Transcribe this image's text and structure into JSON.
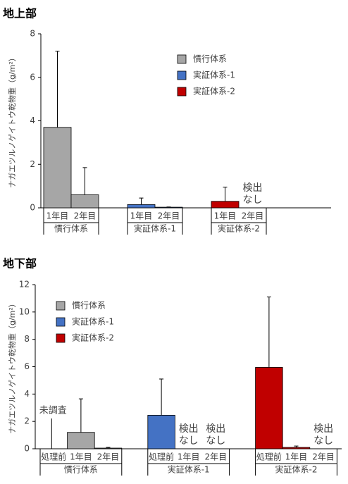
{
  "chart_data": [
    {
      "type": "bar",
      "title": "地上部",
      "y_label": "ナガエツルノゲイトウ乾物重（g/m²）",
      "ylim": [
        0,
        8
      ],
      "yticks": [
        0,
        2,
        4,
        6,
        8
      ],
      "legend_position": "upper right",
      "series": [
        {
          "name": "慣行体系",
          "color": "#a6a6a6",
          "categories": [
            "1年目",
            "2年目"
          ],
          "values": [
            3.7,
            0.6
          ],
          "errors": [
            3.5,
            1.25
          ],
          "notes": [
            null,
            null
          ]
        },
        {
          "name": "実証体系-1",
          "color": "#4472c4",
          "categories": [
            "1年目",
            "2年目"
          ],
          "values": [
            0.15,
            0.03
          ],
          "errors": [
            0.3,
            0.01
          ],
          "notes": [
            null,
            null
          ]
        },
        {
          "name": "実証体系-2",
          "color": "#c00000",
          "categories": [
            "1年目",
            "2年目"
          ],
          "values": [
            0.3,
            null
          ],
          "errors": [
            0.65,
            null
          ],
          "notes": [
            null,
            [
              "検出",
              "なし"
            ]
          ]
        }
      ]
    },
    {
      "type": "bar",
      "title": "地下部",
      "y_label": "ナガエツルノゲイトウ乾物重（g/m²）",
      "ylim": [
        0,
        12
      ],
      "yticks": [
        0,
        2,
        4,
        6,
        8,
        10,
        12
      ],
      "legend_position": "upper left",
      "series": [
        {
          "name": "慣行体系",
          "color": "#a6a6a6",
          "categories": [
            "処理前",
            "1年目",
            "2年目"
          ],
          "values": [
            null,
            1.2,
            0.05
          ],
          "errors": [
            null,
            2.45,
            0.05
          ],
          "notes": [
            [
              "未調査"
            ],
            null,
            null
          ]
        },
        {
          "name": "実証体系-1",
          "color": "#4472c4",
          "categories": [
            "処理前",
            "1年目",
            "2年目"
          ],
          "values": [
            2.45,
            null,
            null
          ],
          "errors": [
            2.65,
            null,
            null
          ],
          "notes": [
            null,
            [
              "検出",
              "なし"
            ],
            [
              "検出",
              "なし"
            ]
          ]
        },
        {
          "name": "実証体系-2",
          "color": "#c00000",
          "categories": [
            "処理前",
            "1年目",
            "2年目"
          ],
          "values": [
            5.95,
            0.1,
            null
          ],
          "errors": [
            5.15,
            0.1,
            null
          ],
          "notes": [
            null,
            null,
            [
              "検出",
              "なし"
            ]
          ]
        }
      ]
    }
  ]
}
